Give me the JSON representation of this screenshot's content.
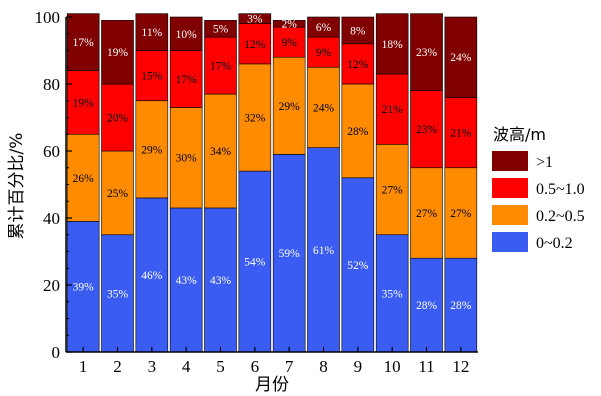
{
  "chart_data": {
    "type": "bar",
    "stacked": true,
    "xlabel": "月份",
    "ylabel": "累计百分比/%",
    "ylim": [
      0,
      100
    ],
    "yticks": [
      0,
      20,
      40,
      60,
      80,
      100
    ],
    "categories": [
      "1",
      "2",
      "3",
      "4",
      "5",
      "6",
      "7",
      "8",
      "9",
      "10",
      "11",
      "12"
    ],
    "legend": {
      "title": "波高/m",
      "position": "right"
    },
    "series": [
      {
        "name": "0~0.2",
        "color": "#3a5cf2",
        "values": [
          39,
          35,
          46,
          43,
          43,
          54,
          59,
          61,
          52,
          35,
          28,
          28
        ]
      },
      {
        "name": "0.2~0.5",
        "color": "#ff8c00",
        "values": [
          26,
          25,
          29,
          30,
          34,
          32,
          29,
          24,
          28,
          27,
          27,
          27
        ]
      },
      {
        "name": "0.5~1.0",
        "color": "#ff0000",
        "values": [
          19,
          20,
          15,
          17,
          17,
          12,
          9,
          9,
          12,
          21,
          23,
          21
        ]
      },
      {
        "name": ">1",
        "color": "#800000",
        "values": [
          17,
          19,
          11,
          10,
          5,
          3,
          2,
          6,
          8,
          18,
          23,
          24
        ]
      }
    ],
    "legend_order": [
      ">1",
      "0.5~1.0",
      "0.2~0.5",
      "0~0.2"
    ],
    "label_suffix": "%"
  }
}
